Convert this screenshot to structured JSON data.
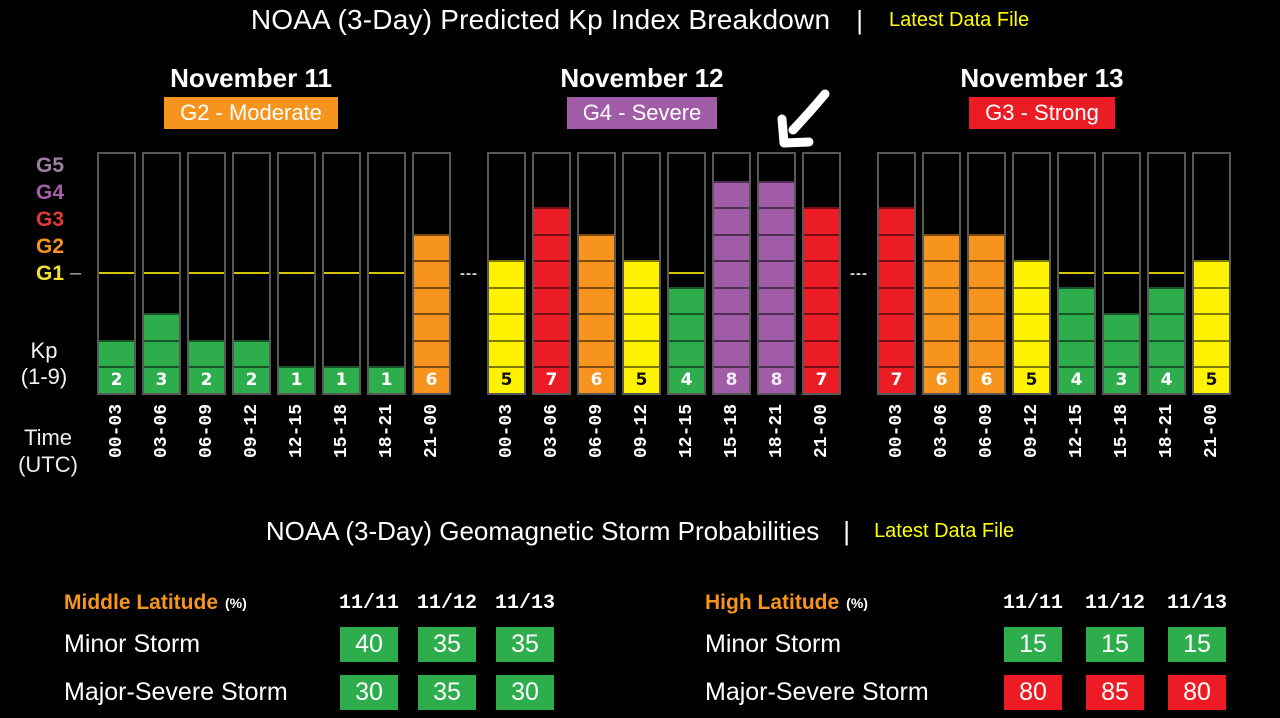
{
  "header": {
    "title": "NOAA (3-Day) Predicted Kp Index Breakdown",
    "separator": "|",
    "link": "Latest Data File",
    "link_color": "#FFFF00"
  },
  "days": [
    {
      "name": "November 11",
      "badge": "G2 - Moderate",
      "badge_color": "#F7941E",
      "kp": [
        2,
        3,
        2,
        2,
        1,
        1,
        1,
        6
      ]
    },
    {
      "name": "November 12",
      "badge": "G4 - Severe",
      "badge_color": "#A15CA8",
      "kp": [
        5,
        7,
        6,
        5,
        4,
        8,
        8,
        7
      ]
    },
    {
      "name": "November 13",
      "badge": "G3 - Strong",
      "badge_color": "#EC1C24",
      "kp": [
        7,
        6,
        6,
        5,
        4,
        3,
        4,
        5
      ]
    }
  ],
  "axis": {
    "g_labels": [
      {
        "text": "G5",
        "color": "#9C80A0"
      },
      {
        "text": "G4",
        "color": "#A35FA8"
      },
      {
        "text": "G3",
        "color": "#E03A34"
      },
      {
        "text": "G2",
        "color": "#F7941E"
      },
      {
        "text": "G1",
        "color": "#EFE32C"
      }
    ],
    "g1_dash": "–",
    "g1_line_color": "#D4C400",
    "kp_label": "Kp",
    "kp_range": "(1-9)",
    "time_label_1": "Time",
    "time_label_2": "(UTC)",
    "group_separator": "---"
  },
  "time_slots": [
    "00-03",
    "03-06",
    "06-09",
    "09-12",
    "12-15",
    "15-18",
    "18-21",
    "21-00"
  ],
  "kp_scale": [
    {
      "max": 4,
      "color": "#2DAD4C",
      "text": "#FFFFFF"
    },
    {
      "max": 5,
      "color": "#FFF200",
      "text": "#111111"
    },
    {
      "max": 6,
      "color": "#F7941E",
      "text": "#FFFFFF"
    },
    {
      "max": 7,
      "color": "#EC1C24",
      "text": "#FFFFFF"
    },
    {
      "max": 9,
      "color": "#A15CA8",
      "text": "#F4EAF6"
    }
  ],
  "chart_data": {
    "type": "bar",
    "title": "NOAA (3-Day) Predicted Kp Index Breakdown",
    "categories": [
      "00-03",
      "03-06",
      "06-09",
      "09-12",
      "12-15",
      "15-18",
      "18-21",
      "21-00"
    ],
    "series": [
      {
        "name": "November 11",
        "values": [
          2,
          3,
          2,
          2,
          1,
          1,
          1,
          6
        ]
      },
      {
        "name": "November 12",
        "values": [
          5,
          7,
          6,
          5,
          4,
          8,
          8,
          7
        ]
      },
      {
        "name": "November 13",
        "values": [
          7,
          6,
          6,
          5,
          4,
          3,
          4,
          5
        ]
      }
    ],
    "xlabel": "Time (UTC)",
    "ylabel": "Kp (1-9)",
    "ylim": [
      0,
      9
    ],
    "grid": false,
    "legend_position": "none",
    "thresholds": {
      "G1": 5,
      "G2": 6,
      "G3": 7,
      "G4": 8,
      "G5": 9
    }
  },
  "probabilities": {
    "title": "NOAA (3-Day) Geomagnetic Storm Probabilities",
    "separator": "|",
    "link": "Latest Data File",
    "columns": [
      "11/11",
      "11/12",
      "11/13"
    ],
    "box_colors": {
      "green": "#2DAD4C",
      "red": "#ED1C24"
    },
    "tables": [
      {
        "name": "Middle Latitude",
        "unit": "(%)",
        "rows": [
          {
            "label": "Minor Storm",
            "values": [
              40,
              35,
              35
            ],
            "colors": [
              "green",
              "green",
              "green"
            ]
          },
          {
            "label": "Major-Severe Storm",
            "values": [
              30,
              35,
              30
            ],
            "colors": [
              "green",
              "green",
              "green"
            ]
          }
        ]
      },
      {
        "name": "High Latitude",
        "unit": "(%)",
        "rows": [
          {
            "label": "Minor Storm",
            "values": [
              15,
              15,
              15
            ],
            "colors": [
              "green",
              "green",
              "green"
            ]
          },
          {
            "label": "Major-Severe Storm",
            "values": [
              80,
              85,
              80
            ],
            "colors": [
              "red",
              "red",
              "red"
            ]
          }
        ]
      }
    ]
  }
}
